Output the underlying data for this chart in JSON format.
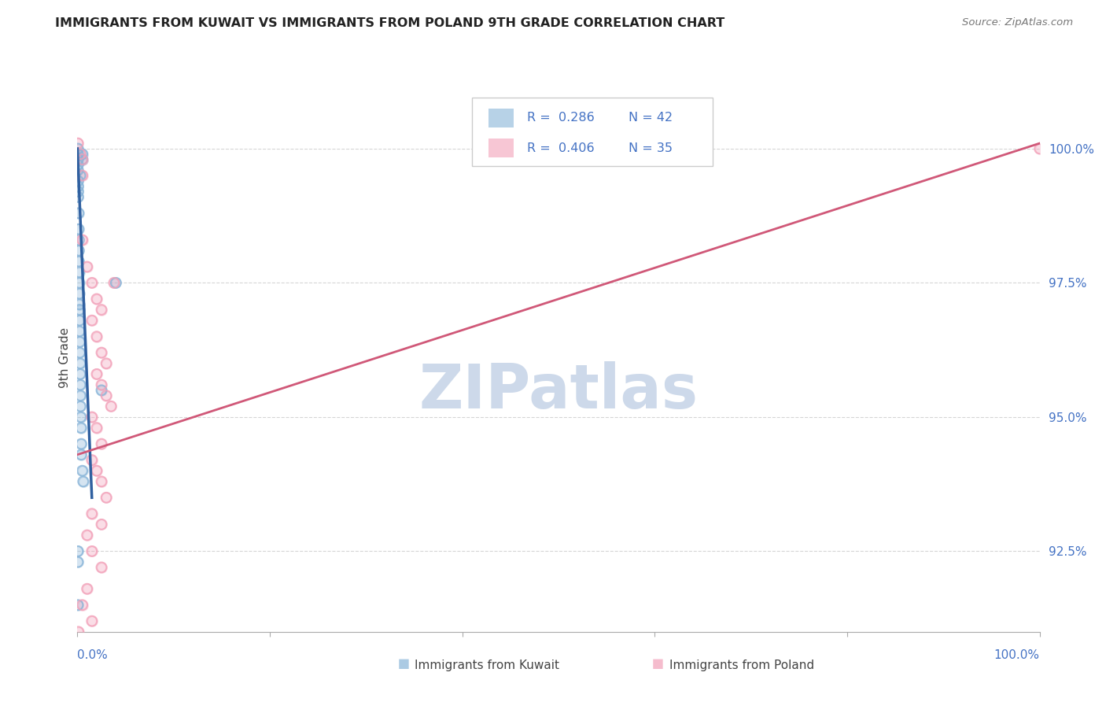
{
  "title": "IMMIGRANTS FROM KUWAIT VS IMMIGRANTS FROM POLAND 9TH GRADE CORRELATION CHART",
  "source": "Source: ZipAtlas.com",
  "ylabel": "9th Grade",
  "yticks": [
    92.5,
    95.0,
    97.5,
    100.0
  ],
  "xlim": [
    0.0,
    100.0
  ],
  "ylim": [
    91.0,
    101.2
  ],
  "kuwait_R": 0.286,
  "kuwait_N": 42,
  "poland_R": 0.406,
  "poland_N": 35,
  "kuwait_color": "#88b4d8",
  "poland_color": "#f2a0b8",
  "kuwait_line_color": "#3060a0",
  "poland_line_color": "#d05878",
  "watermark": "ZIPatlas",
  "watermark_color": "#cdd9ea",
  "kuwait_scatter_x": [
    0.05,
    0.05,
    0.05,
    0.05,
    0.05,
    0.5,
    0.5,
    0.08,
    0.08,
    0.08,
    0.08,
    0.12,
    0.12,
    0.15,
    0.15,
    0.15,
    0.18,
    0.18,
    0.2,
    0.2,
    0.22,
    0.22,
    0.22,
    0.25,
    0.25,
    0.28,
    0.28,
    0.3,
    0.32,
    0.32,
    0.35,
    0.38,
    0.4,
    0.4,
    0.5,
    0.6,
    4.0,
    2.5,
    0.05,
    0.05,
    0.05,
    0.3
  ],
  "kuwait_scatter_y": [
    100.0,
    99.9,
    99.8,
    99.7,
    99.6,
    99.9,
    99.8,
    99.4,
    99.3,
    99.2,
    99.1,
    98.8,
    98.5,
    98.3,
    98.1,
    97.9,
    97.7,
    97.5,
    97.3,
    97.1,
    97.0,
    96.8,
    96.6,
    96.4,
    96.2,
    96.0,
    95.8,
    95.6,
    95.4,
    95.2,
    95.0,
    94.8,
    94.5,
    94.3,
    94.0,
    93.8,
    97.5,
    95.5,
    92.5,
    92.3,
    91.5,
    99.5
  ],
  "poland_scatter_x": [
    0.05,
    0.3,
    0.5,
    0.5,
    3.8,
    0.5,
    1.0,
    1.5,
    2.0,
    2.5,
    1.5,
    2.0,
    2.5,
    3.0,
    2.0,
    2.5,
    3.0,
    3.5,
    1.5,
    2.0,
    2.5,
    1.5,
    2.0,
    2.5,
    3.0,
    1.5,
    2.5,
    1.0,
    1.5,
    2.5,
    1.0,
    0.5,
    1.5,
    0.1,
    100.0
  ],
  "poland_scatter_y": [
    100.1,
    99.9,
    99.8,
    99.5,
    97.5,
    98.3,
    97.8,
    97.5,
    97.2,
    97.0,
    96.8,
    96.5,
    96.2,
    96.0,
    95.8,
    95.6,
    95.4,
    95.2,
    95.0,
    94.8,
    94.5,
    94.2,
    94.0,
    93.8,
    93.5,
    93.2,
    93.0,
    92.8,
    92.5,
    92.2,
    91.8,
    91.5,
    91.2,
    91.0,
    100.0
  ],
  "kuwait_line_x": [
    0.0,
    1.5
  ],
  "kuwait_line_y": [
    100.0,
    93.5
  ],
  "poland_line_x": [
    0.0,
    100.0
  ],
  "poland_line_y": [
    94.3,
    100.1
  ]
}
